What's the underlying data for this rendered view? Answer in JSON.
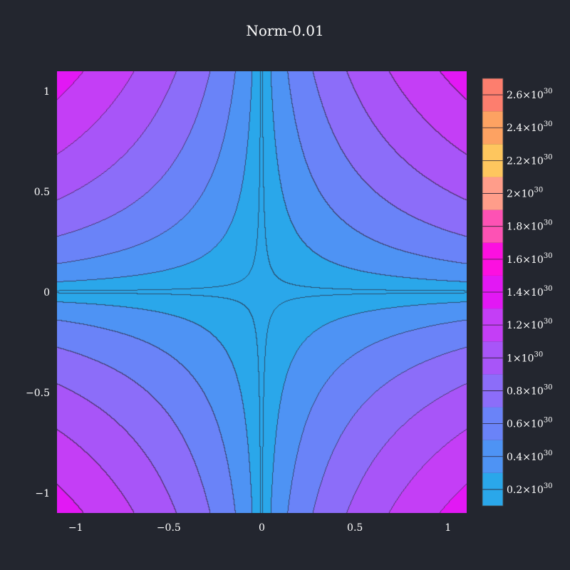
{
  "chart_data": {
    "type": "contour",
    "title": "Norm-0.01",
    "function": "(|x|^p + |y|^p)^(1/p), p = 0.01",
    "xlim": [
      -1.1,
      1.1
    ],
    "ylim": [
      -1.1,
      1.1
    ],
    "x_ticks": [
      -1,
      -0.5,
      0,
      0.5,
      1
    ],
    "y_ticks": [
      -1,
      -0.5,
      0,
      0.5,
      1
    ],
    "x_tick_labels": [
      "−1",
      "−0.5",
      "0",
      "0.5",
      "1"
    ],
    "y_tick_labels": [
      "−1",
      "−0.5",
      "0",
      "0.5",
      "1"
    ],
    "colorbar": {
      "levels_step": 2e+29,
      "range": [
        1e+29,
        2.7e+30
      ],
      "tick_values": [
        2e+29,
        4e+29,
        6e+29,
        8e+29,
        1e+30,
        1.2e+30,
        1.4e+30,
        1.6e+30,
        1.8e+30,
        2e+30,
        2.2e+30,
        2.4e+30,
        2.6e+30
      ],
      "tick_labels": [
        {
          "mantissa": "0.2×10",
          "exp": "30"
        },
        {
          "mantissa": "0.4×10",
          "exp": "30"
        },
        {
          "mantissa": "0.6×10",
          "exp": "30"
        },
        {
          "mantissa": "0.8×10",
          "exp": "30"
        },
        {
          "mantissa": "1×10",
          "exp": "30"
        },
        {
          "mantissa": "1.2×10",
          "exp": "30"
        },
        {
          "mantissa": "1.4×10",
          "exp": "30"
        },
        {
          "mantissa": "1.6×10",
          "exp": "30"
        },
        {
          "mantissa": "1.8×10",
          "exp": "30"
        },
        {
          "mantissa": "2×10",
          "exp": "30"
        },
        {
          "mantissa": "2.2×10",
          "exp": "30"
        },
        {
          "mantissa": "2.4×10",
          "exp": "30"
        },
        {
          "mantissa": "2.6×10",
          "exp": "30"
        }
      ],
      "colors": [
        "#2aa7ea",
        "#4e93f4",
        "#6a83f8",
        "#8c6df9",
        "#a855f8",
        "#c43ef6",
        "#e218f4",
        "#fc10e0",
        "#fd52b4",
        "#ff9d8a",
        "#fec65e",
        "#fda262",
        "#fd7e6e",
        "#fd5f7c"
      ]
    }
  },
  "colors": {
    "background": "#23262f",
    "contour_line": "#2a2030"
  }
}
